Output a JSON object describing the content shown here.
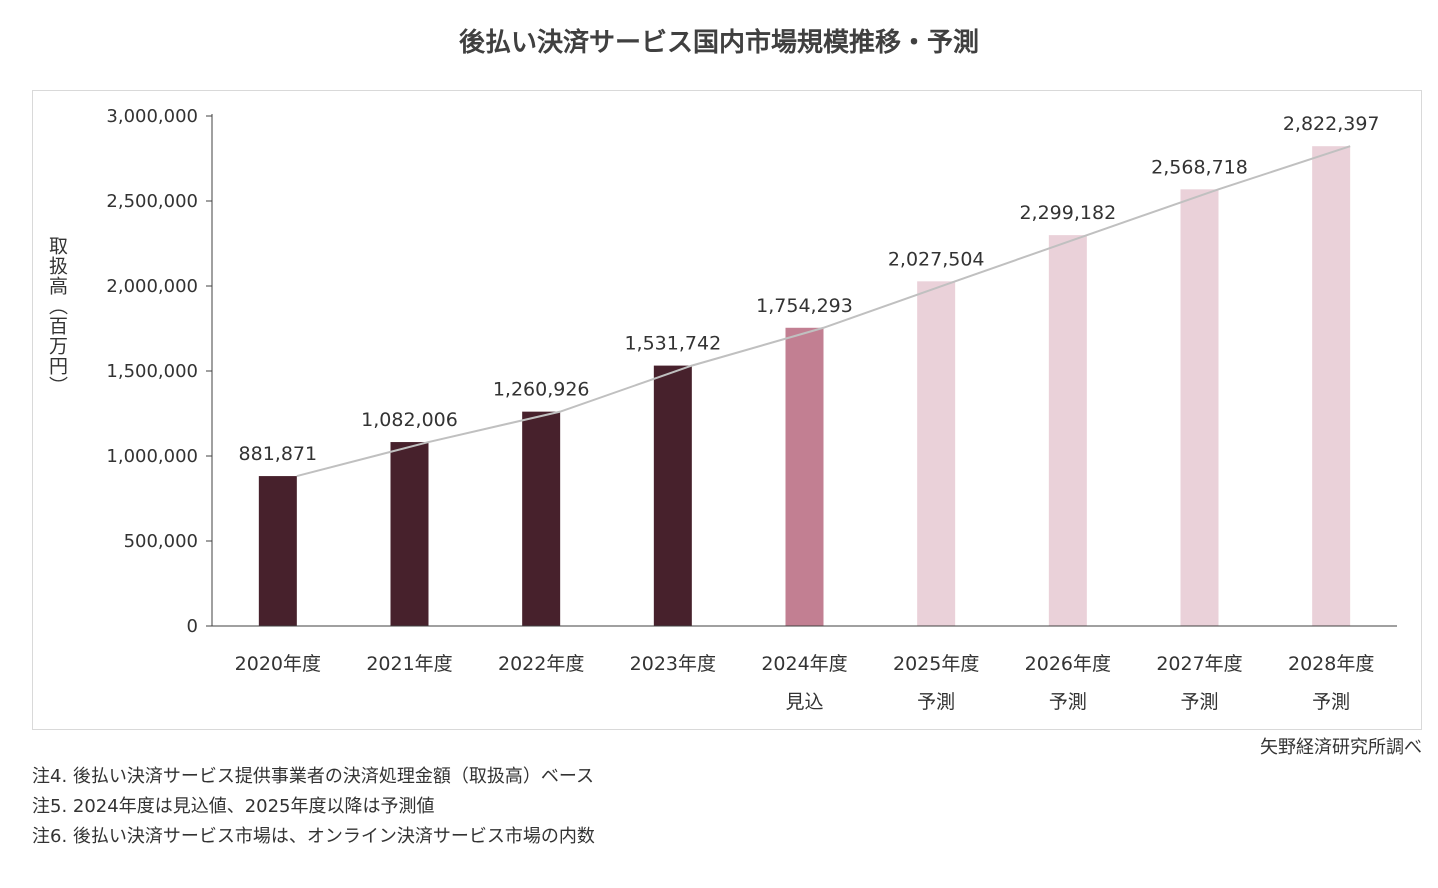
{
  "title": "後払い決済サービス国内市場規模推移・予測",
  "source": "矢野経済研究所調べ",
  "notes": [
    "注4.  後払い決済サービス提供事業者の決済処理金額（取扱高）ベース",
    "注5.  2024年度は見込値、2025年度以降は予測値",
    "注6.  後払い決済サービス市場は、オンライン決済サービス市場の内数"
  ],
  "colors": {
    "actual": "#47212c",
    "estimate": "#c27f92",
    "forecast": "#ead1d9",
    "trend_line": "#c0c0c0",
    "axis": "#404040"
  },
  "chart_data": {
    "type": "bar",
    "title": "後払い決済サービス国内市場規模推移・予測",
    "ylabel": "取扱高（百万円）",
    "xlabel": "",
    "ylim": [
      0,
      3000000
    ],
    "yticks": [
      0,
      500000,
      1000000,
      1500000,
      2000000,
      2500000,
      3000000
    ],
    "ytick_labels": [
      "0",
      "500,000",
      "1,000,000",
      "1,500,000",
      "2,000,000",
      "2,500,000",
      "3,000,000"
    ],
    "categories": [
      "2020年度",
      "2021年度",
      "2022年度",
      "2023年度",
      "2024年度",
      "2025年度",
      "2026年度",
      "2027年度",
      "2028年度"
    ],
    "sublabels": [
      "",
      "",
      "",
      "",
      "見込",
      "予測",
      "予測",
      "予測",
      "予測"
    ],
    "values": [
      881871,
      1082006,
      1260926,
      1531742,
      1754293,
      2027504,
      2299182,
      2568718,
      2822397
    ],
    "value_labels": [
      "881,871",
      "1,082,006",
      "1,260,926",
      "1,531,742",
      "1,754,293",
      "2,027,504",
      "2,299,182",
      "2,568,718",
      "2,822,397"
    ],
    "bar_status": [
      "actual",
      "actual",
      "actual",
      "actual",
      "estimate",
      "forecast",
      "forecast",
      "forecast",
      "forecast"
    ],
    "trend_line": true,
    "grid": false,
    "legend": "none"
  }
}
